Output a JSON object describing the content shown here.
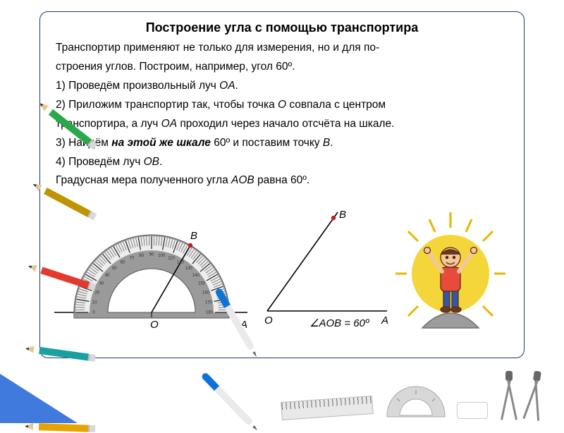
{
  "title": "Построение угла с помощью транспортира",
  "intro_1": "Транспортир применяют не только для измерения, но и для по-",
  "intro_2": "строения углов. Построим, например, угол 60º.",
  "step1_a": "1) Проведём произвольный луч ",
  "step1_ray": "OA",
  "step1_b": ".",
  "step2_a": "2) Приложим транспортир так, чтобы точка ",
  "step2_O": "O",
  "step2_b": " совпала с центром",
  "step2_c": "транспортира, а луч ",
  "step2_ray": "OA",
  "step2_d": " проходил через начало отсчёта на шкале.",
  "step3_a": "3) Найдём ",
  "step3_em": "на этой же шкале",
  "step3_b": " 60º и поставим точку ",
  "step3_B": "B",
  "step3_c": ".",
  "step4_a": "4) Проведём луч ",
  "step4_ray": "OB",
  "step4_b": ".",
  "concl_a": "Градусная мера полученного угла ",
  "concl_angle": "AOB",
  "concl_b": " равна 60º.",
  "angle_fig": {
    "O": "O",
    "A": "A",
    "B": "B",
    "label": "∠AOB = 60º",
    "colors": {
      "line": "#000000",
      "pointB": "#c02020"
    }
  },
  "protractor_fig": {
    "O": "O",
    "A": "A",
    "B": "B",
    "ticks": [
      "0",
      "10",
      "20",
      "30",
      "40",
      "50",
      "60",
      "70",
      "80",
      "90",
      "100",
      "110",
      "120",
      "130",
      "140",
      "150",
      "160",
      "170",
      "180"
    ],
    "outer_fill": "#9a9a9a",
    "inner_fill": "#ffffff",
    "base_color": "#000000"
  },
  "kid_fig": {
    "sun": "#f5d63a",
    "ray": "#e6b800",
    "skin": "#f2c79a",
    "shirt": "#e64b3c",
    "pants": "#2e5aa8",
    "rock": "#9c9c9c"
  },
  "stationery": {
    "pencils": [
      {
        "color": "#2aa84a",
        "rot": -52
      },
      {
        "color": "#c09400",
        "rot": -62
      },
      {
        "color": "#e33a2f",
        "rot": -72
      },
      {
        "color": "#1aa0a0",
        "rot": -82
      },
      {
        "color": "#e7a300",
        "rot": -88
      }
    ],
    "pens": [
      {
        "cap": "#0b74d6",
        "rot": -30
      },
      {
        "cap": "#0b74d6",
        "rot": -44
      }
    ],
    "ruler_color": "#e9e9e9",
    "protractor_color": "#d8d8d8",
    "triangle_color": "#1d63d6"
  }
}
